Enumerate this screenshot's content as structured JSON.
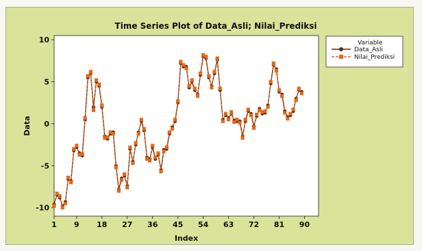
{
  "chart_data": {
    "type": "line",
    "title": "Time Series Plot of Data_Asli; Nilai_Prediksi",
    "xlabel": "Index",
    "ylabel": "Data",
    "xlim": [
      1,
      95
    ],
    "ylim": [
      -11,
      10.5
    ],
    "x_ticks": [
      1,
      9,
      18,
      27,
      36,
      45,
      54,
      63,
      72,
      81,
      90
    ],
    "y_ticks": [
      -10,
      -5,
      0,
      5,
      10
    ],
    "legend": {
      "title": "Variable",
      "placement": "right"
    },
    "series": [
      {
        "name": "Data_Asli",
        "color": "#5a2a12",
        "marker": "circle",
        "values": [
          -9.6,
          -8.5,
          -8.8,
          -9.8,
          -9.3,
          -6.6,
          -6.8,
          -3.2,
          -2.8,
          -3.5,
          -3.8,
          0.5,
          5.5,
          6.0,
          2.0,
          5.0,
          4.5,
          2.0,
          -1.5,
          -1.8,
          -1.2,
          -1.0,
          -5.0,
          -7.8,
          -6.5,
          -6.2,
          -7.4,
          -3.0,
          -4.5,
          -2.5,
          -1.0,
          0.3,
          -0.8,
          -4.0,
          -4.2,
          -2.8,
          -4.2,
          -3.7,
          -5.5,
          -3.1,
          -3.0,
          -1.2,
          -0.4,
          0.3,
          2.5,
          7.2,
          6.8,
          6.8,
          4.3,
          5.0,
          4.0,
          3.5,
          5.8,
          8.0,
          7.8,
          5.5,
          4.5,
          6.0,
          7.6,
          4.0,
          0.5,
          1.0,
          0.7,
          1.2,
          0.4,
          0.3,
          0.3,
          -1.5,
          0.3,
          1.5,
          1.2,
          -0.3,
          0.9,
          1.8,
          1.2,
          1.3,
          2.2,
          4.8,
          7.0,
          6.5,
          3.8,
          3.5,
          1.5,
          0.8,
          1.0,
          1.5,
          3.0,
          4.0,
          3.8
        ]
      },
      {
        "name": "Nilai_Prediksi",
        "color": "#e06a1f",
        "marker": "square",
        "values": [
          -9.8,
          -8.3,
          -8.6,
          -10.0,
          -9.5,
          -6.4,
          -7.0,
          -3.0,
          -2.6,
          -3.7,
          -3.6,
          0.7,
          5.7,
          6.2,
          1.6,
          5.2,
          4.7,
          2.2,
          -1.7,
          -1.6,
          -1.0,
          -1.2,
          -5.2,
          -8.0,
          -6.7,
          -6.0,
          -7.6,
          -2.8,
          -4.7,
          -2.3,
          -1.2,
          0.5,
          -0.6,
          -4.2,
          -4.4,
          -2.6,
          -4.0,
          -3.5,
          -5.7,
          -3.3,
          -2.8,
          -1.0,
          -0.6,
          0.5,
          2.7,
          7.4,
          7.0,
          6.6,
          4.5,
          5.2,
          4.2,
          3.3,
          6.0,
          8.2,
          8.0,
          5.7,
          4.3,
          6.2,
          7.8,
          4.2,
          0.3,
          1.2,
          0.5,
          1.4,
          0.2,
          0.5,
          0.1,
          -1.7,
          0.5,
          1.7,
          1.0,
          -0.5,
          1.1,
          1.6,
          1.4,
          1.5,
          2.0,
          5.0,
          7.2,
          6.3,
          4.0,
          3.3,
          1.3,
          0.6,
          1.2,
          1.7,
          2.8,
          4.2,
          3.6
        ]
      }
    ]
  }
}
